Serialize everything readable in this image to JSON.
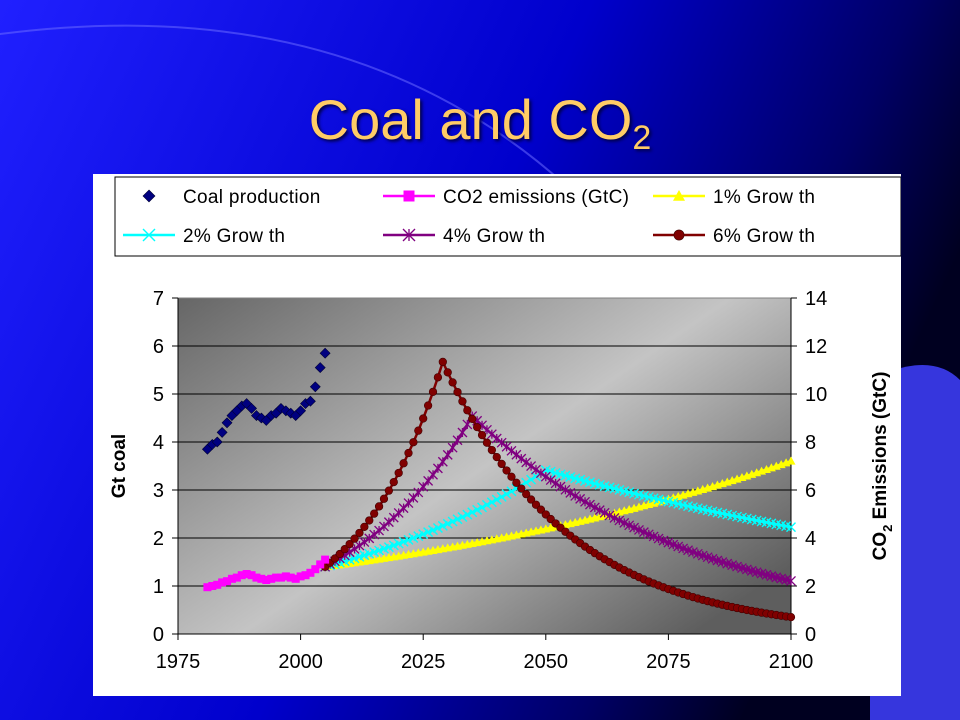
{
  "slide": {
    "title_main": "Coal and CO",
    "title_sub": "2"
  },
  "colors": {
    "background": "#0000cc",
    "title": "#ffcc66",
    "coal": "#000080",
    "co2": "#ff00ff",
    "g1": "#ffff00",
    "g2": "#00ffff",
    "g4": "#800080",
    "g6": "#800000"
  },
  "chart_data": {
    "type": "scatter",
    "title": "",
    "xlabel": "",
    "ylabel_left": "Gt coal",
    "ylabel_right_prefix": "CO",
    "ylabel_right_sub": "2",
    "ylabel_right_suffix": " Emissions (GtC)",
    "xlim": [
      1975,
      2100
    ],
    "ylim_left": [
      0,
      7
    ],
    "ylim_right": [
      0,
      14
    ],
    "x_ticks": [
      1975,
      2000,
      2025,
      2050,
      2075,
      2100
    ],
    "y_ticks_left": [
      0,
      1,
      2,
      3,
      4,
      5,
      6,
      7
    ],
    "y_ticks_right": [
      0,
      2,
      4,
      6,
      8,
      10,
      12,
      14
    ],
    "grid": "horizontal",
    "legend_position": "top",
    "legend": [
      {
        "label": "Coal production",
        "marker": "diamond",
        "color": "#000080"
      },
      {
        "label": "CO2 emissions (GtC)",
        "marker": "square",
        "color": "#ff00ff"
      },
      {
        "label": "1% Grow th",
        "marker": "triangle",
        "color": "#ffff00"
      },
      {
        "label": "2% Grow th",
        "marker": "x",
        "color": "#00ffff"
      },
      {
        "label": "4% Grow th",
        "marker": "star",
        "color": "#800080"
      },
      {
        "label": "6% Grow th",
        "marker": "circle",
        "color": "#800000"
      }
    ],
    "series": [
      {
        "name": "Coal production",
        "axis": "left",
        "marker": "diamond",
        "color": "#000080",
        "x": [
          1981,
          1982,
          1983,
          1984,
          1985,
          1986,
          1987,
          1988,
          1989,
          1990,
          1991,
          1992,
          1993,
          1994,
          1995,
          1996,
          1997,
          1998,
          1999,
          2000,
          2001,
          2002,
          2003,
          2004,
          2005
        ],
        "y": [
          3.85,
          3.95,
          4.0,
          4.2,
          4.4,
          4.55,
          4.65,
          4.75,
          4.8,
          4.7,
          4.55,
          4.5,
          4.45,
          4.55,
          4.6,
          4.7,
          4.65,
          4.6,
          4.55,
          4.65,
          4.8,
          4.85,
          5.15,
          5.55,
          5.85
        ]
      },
      {
        "name": "CO2 emissions (GtC)",
        "axis": "right",
        "marker": "square",
        "color": "#ff00ff",
        "x": [
          1981,
          1982,
          1983,
          1984,
          1985,
          1986,
          1987,
          1988,
          1989,
          1990,
          1991,
          1992,
          1993,
          1994,
          1995,
          1996,
          1997,
          1998,
          1999,
          2000,
          2001,
          2002,
          2003,
          2004,
          2005
        ],
        "y": [
          1.95,
          2.0,
          2.05,
          2.15,
          2.2,
          2.3,
          2.35,
          2.45,
          2.5,
          2.45,
          2.35,
          2.3,
          2.25,
          2.3,
          2.35,
          2.35,
          2.4,
          2.35,
          2.3,
          2.4,
          2.45,
          2.55,
          2.7,
          2.9,
          3.1
        ]
      },
      {
        "name": "1% Grow th",
        "axis": "right",
        "marker": "triangle",
        "color": "#ffff00",
        "model": "growth",
        "x_start": 2005,
        "x_end": 2100,
        "y_start": 2.8,
        "rate": 0.01
      },
      {
        "name": "2% Grow th",
        "axis": "right",
        "marker": "x",
        "color": "#00ffff",
        "model": "peak",
        "x_start": 2005,
        "x_end": 2100,
        "y_start": 2.8,
        "rate": 0.02,
        "peak_x": 2050,
        "decline": 0.0085
      },
      {
        "name": "4% Grow th",
        "axis": "right",
        "marker": "star",
        "color": "#800080",
        "model": "peak",
        "x_start": 2005,
        "x_end": 2100,
        "y_start": 2.8,
        "rate": 0.04,
        "peak_x": 2035,
        "decline": 0.0215
      },
      {
        "name": "6% Grow th",
        "axis": "right",
        "marker": "circle",
        "color": "#800000",
        "model": "peak",
        "x_start": 2005,
        "x_end": 2100,
        "y_start": 2.8,
        "rate": 0.06,
        "peak_x": 2029,
        "decline": 0.0384
      }
    ]
  }
}
